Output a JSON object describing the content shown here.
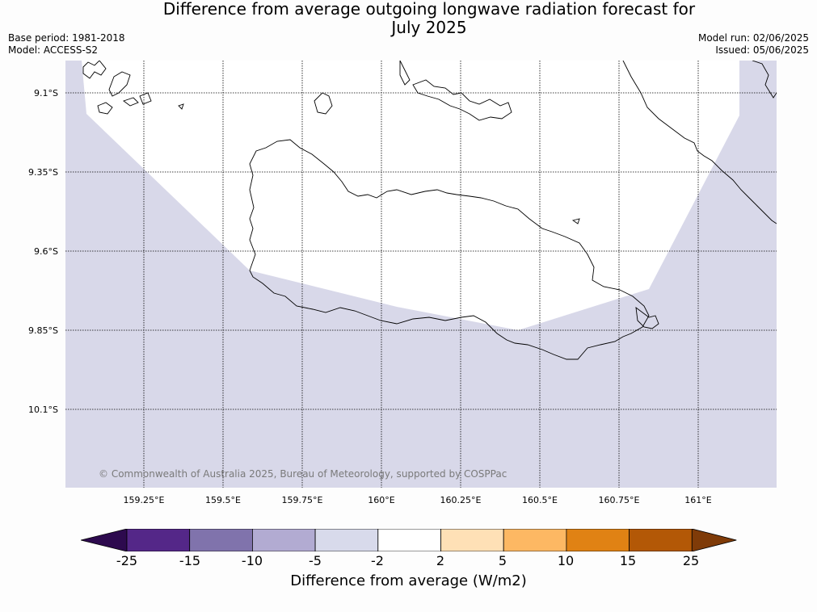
{
  "title": {
    "line1": "Difference from average outgoing longwave radiation forecast for",
    "line2": "July 2025"
  },
  "meta": {
    "base_period": "Base period: 1981-2018",
    "model": "Model: ACCESS-S2",
    "model_run": "Model run: 02/06/2025",
    "issued": "Issued: 05/06/2025"
  },
  "map": {
    "lat_labels": [
      "9.1°S",
      "9.35°S",
      "9.6°S",
      "9.85°S",
      "10.1°S"
    ],
    "lon_labels": [
      "159.25°E",
      "159.5°E",
      "159.75°E",
      "160°E",
      "160.25°E",
      "160.5°E",
      "160.75°E",
      "161°E"
    ],
    "credit": "© Commonwealth of Australia 2025, Bureau of Meteorology, supported by COSPPac",
    "fill_colors": {
      "background": "#d8d8e9",
      "near_normal": "#ffffff"
    }
  },
  "colorbar": {
    "label": "Difference from average (W/m2)",
    "ticks": [
      "-25",
      "-15",
      "-10",
      "-5",
      "-2",
      "2",
      "5",
      "10",
      "15",
      "25"
    ],
    "colors": [
      "#2d0a4e",
      "#542788",
      "#8073ac",
      "#b2abd2",
      "#d8daeb",
      "#ffffff",
      "#fee0b6",
      "#fdb863",
      "#e08214",
      "#b35806",
      "#7f3b08"
    ]
  }
}
